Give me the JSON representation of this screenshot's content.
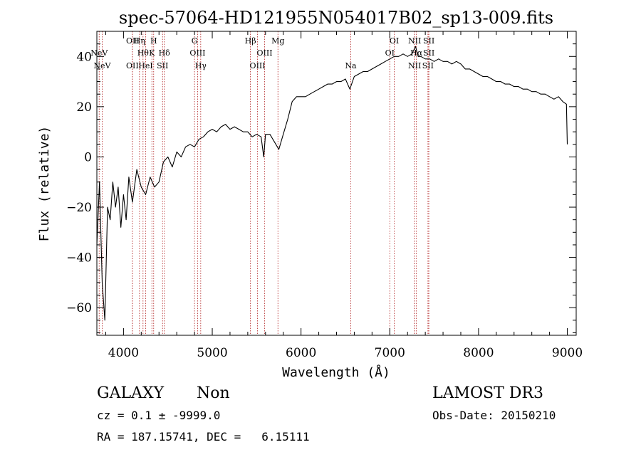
{
  "chart_data": {
    "type": "line",
    "title": "spec-57064-HD121955N054017B02_sp13-009.fits",
    "xlabel": "Wavelength (Å)",
    "ylabel": "Flux (relative)",
    "xlim": [
      3700,
      9100
    ],
    "ylim": [
      -71,
      50
    ],
    "xticks": [
      4000,
      5000,
      6000,
      7000,
      8000,
      9000
    ],
    "yticks": [
      -60,
      -40,
      -20,
      0,
      20,
      40
    ],
    "grid": false,
    "series": [
      {
        "points": [
          [
            3700,
            -35
          ],
          [
            3730,
            -10
          ],
          [
            3760,
            -50
          ],
          [
            3790,
            -65
          ],
          [
            3820,
            -20
          ],
          [
            3850,
            -25
          ],
          [
            3880,
            -10
          ],
          [
            3910,
            -20
          ],
          [
            3940,
            -12
          ],
          [
            3970,
            -28
          ],
          [
            4000,
            -15
          ],
          [
            4030,
            -25
          ],
          [
            4060,
            -8
          ],
          [
            4100,
            -18
          ],
          [
            4150,
            -5
          ],
          [
            4200,
            -12
          ],
          [
            4250,
            -15
          ],
          [
            4300,
            -8
          ],
          [
            4350,
            -12
          ],
          [
            4400,
            -10
          ],
          [
            4450,
            -2
          ],
          [
            4500,
            0
          ],
          [
            4550,
            -4
          ],
          [
            4600,
            2
          ],
          [
            4650,
            0
          ],
          [
            4700,
            4
          ],
          [
            4750,
            5
          ],
          [
            4800,
            4
          ],
          [
            4850,
            7
          ],
          [
            4900,
            8
          ],
          [
            4950,
            10
          ],
          [
            5000,
            11
          ],
          [
            5050,
            10
          ],
          [
            5100,
            12
          ],
          [
            5150,
            13
          ],
          [
            5200,
            11
          ],
          [
            5250,
            12
          ],
          [
            5300,
            11
          ],
          [
            5350,
            10
          ],
          [
            5400,
            10
          ],
          [
            5450,
            8
          ],
          [
            5500,
            9
          ],
          [
            5550,
            8
          ],
          [
            5580,
            0
          ],
          [
            5600,
            9
          ],
          [
            5650,
            9
          ],
          [
            5700,
            6
          ],
          [
            5750,
            3
          ],
          [
            5800,
            9
          ],
          [
            5850,
            15
          ],
          [
            5900,
            22
          ],
          [
            5950,
            24
          ],
          [
            6000,
            24
          ],
          [
            6050,
            24
          ],
          [
            6100,
            25
          ],
          [
            6150,
            26
          ],
          [
            6200,
            27
          ],
          [
            6250,
            28
          ],
          [
            6300,
            29
          ],
          [
            6350,
            29
          ],
          [
            6400,
            30
          ],
          [
            6450,
            30
          ],
          [
            6500,
            31
          ],
          [
            6550,
            27
          ],
          [
            6600,
            32
          ],
          [
            6650,
            33
          ],
          [
            6700,
            34
          ],
          [
            6750,
            34
          ],
          [
            6800,
            35
          ],
          [
            6850,
            36
          ],
          [
            6900,
            37
          ],
          [
            6950,
            38
          ],
          [
            7000,
            39
          ],
          [
            7050,
            40
          ],
          [
            7100,
            40
          ],
          [
            7150,
            41
          ],
          [
            7200,
            40
          ],
          [
            7250,
            41
          ],
          [
            7290,
            44
          ],
          [
            7320,
            40
          ],
          [
            7350,
            40
          ],
          [
            7400,
            39
          ],
          [
            7450,
            39
          ],
          [
            7500,
            38
          ],
          [
            7550,
            39
          ],
          [
            7600,
            38
          ],
          [
            7650,
            38
          ],
          [
            7700,
            37
          ],
          [
            7750,
            38
          ],
          [
            7800,
            37
          ],
          [
            7850,
            35
          ],
          [
            7900,
            35
          ],
          [
            7950,
            34
          ],
          [
            8000,
            33
          ],
          [
            8050,
            32
          ],
          [
            8100,
            32
          ],
          [
            8150,
            31
          ],
          [
            8200,
            30
          ],
          [
            8250,
            30
          ],
          [
            8300,
            29
          ],
          [
            8350,
            29
          ],
          [
            8400,
            28
          ],
          [
            8450,
            28
          ],
          [
            8500,
            27
          ],
          [
            8550,
            27
          ],
          [
            8600,
            26
          ],
          [
            8650,
            26
          ],
          [
            8700,
            25
          ],
          [
            8750,
            25
          ],
          [
            8800,
            24
          ],
          [
            8850,
            23
          ],
          [
            8900,
            24
          ],
          [
            8950,
            22
          ],
          [
            8990,
            21
          ],
          [
            9000,
            5
          ]
        ]
      }
    ],
    "lines": [
      {
        "label": "NeV",
        "wavelength": 3726,
        "row": 1
      },
      {
        "label": "NeV",
        "wavelength": 3760,
        "row": 2
      },
      {
        "label": "OII",
        "wavelength": 4100,
        "row": 0
      },
      {
        "label": "OII",
        "wavelength": 4100,
        "row": 2
      },
      {
        "label": "Hη",
        "wavelength": 4180,
        "row": 0
      },
      {
        "label": "Hθ",
        "wavelength": 4220,
        "row": 1
      },
      {
        "label": "HeI",
        "wavelength": 4250,
        "row": 2
      },
      {
        "label": "H",
        "wavelength": 4340,
        "row": 0
      },
      {
        "label": "K",
        "wavelength": 4320,
        "row": 1
      },
      {
        "label": "Hδ",
        "wavelength": 4460,
        "row": 1
      },
      {
        "label": "SII",
        "wavelength": 4440,
        "row": 2
      },
      {
        "label": "G",
        "wavelength": 4800,
        "row": 0
      },
      {
        "label": "OIII",
        "wavelength": 4835,
        "row": 1
      },
      {
        "label": "Hγ",
        "wavelength": 4870,
        "row": 2
      },
      {
        "label": "Hβ",
        "wavelength": 5430,
        "row": 0
      },
      {
        "label": "OIII",
        "wavelength": 5590,
        "row": 1
      },
      {
        "label": "OIII",
        "wavelength": 5510,
        "row": 2
      },
      {
        "label": "Mg",
        "wavelength": 5740,
        "row": 0
      },
      {
        "label": "Na",
        "wavelength": 6560,
        "row": 2
      },
      {
        "label": "OI",
        "wavelength": 7050,
        "row": 0
      },
      {
        "label": "OI",
        "wavelength": 7000,
        "row": 1
      },
      {
        "label": "NII",
        "wavelength": 7280,
        "row": 0
      },
      {
        "label": "Hα",
        "wavelength": 7300,
        "row": 1
      },
      {
        "label": "NII",
        "wavelength": 7280,
        "row": 2
      },
      {
        "label": "SII",
        "wavelength": 7440,
        "row": 0
      },
      {
        "label": "SII",
        "wavelength": 7440,
        "row": 1
      },
      {
        "label": "SII",
        "wavelength": 7430,
        "row": 2
      }
    ]
  },
  "info": {
    "class": "GALAXY",
    "subclass": "Non",
    "survey": "LAMOST DR3",
    "cz": "cz = 0.1 ± -9999.0",
    "obs_date": "Obs-Date: 20150210",
    "radec": "RA = 187.15741, DEC =   6.15111"
  }
}
